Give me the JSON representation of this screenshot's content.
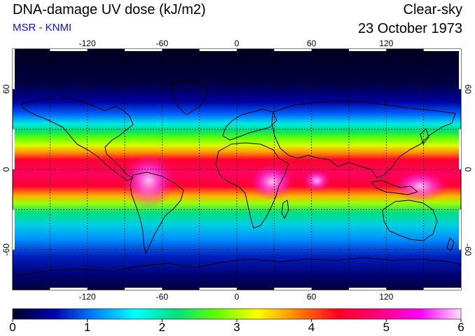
{
  "header": {
    "title": "DNA-damage UV dose (kJ/m2)",
    "source": "MSR - KNMI",
    "condition": "Clear-sky",
    "date": "23 October 1973"
  },
  "map": {
    "lon_ticks": [
      -120,
      -60,
      0,
      60,
      120
    ],
    "lat_ticks": [
      60,
      0,
      -60
    ],
    "lon_range": [
      -180,
      180
    ],
    "lat_range": [
      -90,
      90
    ],
    "grid_lon_step": 30,
    "grid_lat_step": 30
  },
  "colorbar": {
    "min": 0,
    "max": 6,
    "ticks": [
      0,
      1,
      2,
      3,
      4,
      5,
      6
    ],
    "tick_labels": [
      "0",
      "1",
      "2",
      "3",
      "4",
      "5",
      "6"
    ],
    "colors": [
      "#000028",
      "#0000aa",
      "#0080ff",
      "#00ffff",
      "#00e080",
      "#60ff00",
      "#ffff00",
      "#ff8000",
      "#ff0020",
      "#ff0080",
      "#ff00ff",
      "#ffe0ff"
    ]
  }
}
